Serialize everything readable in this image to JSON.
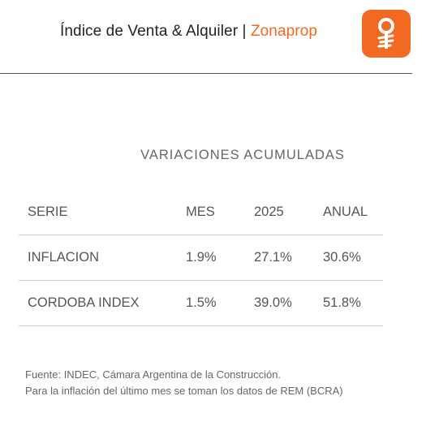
{
  "header": {
    "title": "Índice de Venta & Alquiler | ",
    "brand": "Zonaprop",
    "brand_color": "#f26a21",
    "logo_icon": "zonaprop-key-icon"
  },
  "section": {
    "title": "VARIACIONES ACUMULADAS"
  },
  "table": {
    "headers": [
      "SERIE",
      "MES",
      "2025",
      "ANUAL"
    ],
    "rows": [
      [
        "INFLACION",
        "1.9%",
        "27.1%",
        "30.6%"
      ],
      [
        "CORDOBA INDEX",
        "1.5%",
        "39.0%",
        "51.8%"
      ]
    ]
  },
  "footnote": {
    "line1": "Fuente: INDEC, Cámara Argentina de la Construcción.",
    "line2": "Para la inflación del último mes se toman los datos de REM (BCRA)"
  }
}
